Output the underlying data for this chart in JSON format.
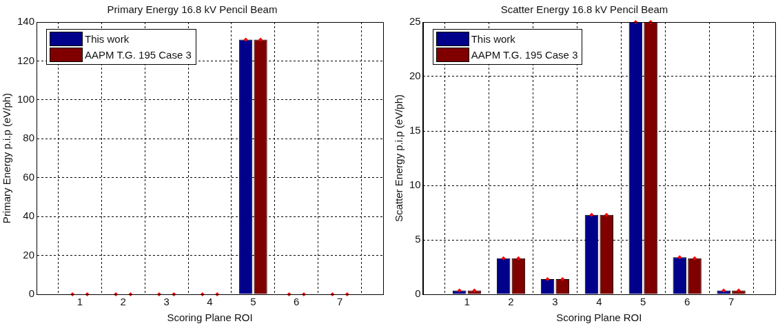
{
  "chart_data": [
    {
      "type": "bar",
      "title": "Primary Energy 16.8 kV Pencil Beam",
      "xlabel": "Scoring Plane ROI",
      "ylabel": "Primary Energy p.i.p (eV/ph)",
      "x": [
        1,
        2,
        3,
        4,
        5,
        6,
        7
      ],
      "xlim": [
        0,
        8
      ],
      "xticks": [
        1,
        2,
        3,
        4,
        5,
        6,
        7
      ],
      "ylim": [
        0,
        140
      ],
      "yticks": [
        0,
        20,
        40,
        60,
        80,
        100,
        120,
        140
      ],
      "grid": true,
      "legend": "top left",
      "series": [
        {
          "name": "This work",
          "color": "#00008b",
          "values": [
            0,
            0,
            0,
            0,
            131,
            0,
            0
          ]
        },
        {
          "name": "AAPM T.G. 195 Case 3",
          "color": "#800000",
          "values": [
            0,
            0,
            0,
            0,
            131,
            0,
            0
          ]
        },
        {
          "type": "scatter",
          "marker": "diamond",
          "color": "#ff0000",
          "x": [
            0.83,
            1.83,
            2.83,
            3.83,
            4.83,
            5.83,
            6.83
          ],
          "values": [
            0,
            0,
            0,
            0,
            131,
            0,
            0
          ]
        },
        {
          "type": "scatter",
          "marker": "diamond",
          "color": "#ff0000",
          "x": [
            1.17,
            2.17,
            3.17,
            4.17,
            5.17,
            6.17,
            7.17
          ],
          "values": [
            0,
            0,
            0,
            0,
            131,
            0,
            0
          ]
        }
      ]
    },
    {
      "type": "bar",
      "title": "Scatter Energy 16.8 kV Pencil Beam",
      "xlabel": "Scoring Plane ROI",
      "ylabel": "Scatter Energy p.i.p (eV/ph)",
      "x": [
        1,
        2,
        3,
        4,
        5,
        6,
        7
      ],
      "xlim": [
        0,
        8
      ],
      "xticks": [
        1,
        2,
        3,
        4,
        5,
        6,
        7
      ],
      "ylim": [
        0,
        25
      ],
      "yticks": [
        0,
        5,
        10,
        15,
        20,
        25
      ],
      "grid": true,
      "legend": "top left",
      "series": [
        {
          "name": "This work",
          "color": "#00008b",
          "values": [
            0.35,
            3.3,
            1.4,
            7.3,
            25,
            3.4,
            0.35
          ]
        },
        {
          "name": "AAPM T.G. 195 Case 3",
          "color": "#800000",
          "values": [
            0.35,
            3.3,
            1.4,
            7.3,
            25,
            3.3,
            0.35
          ]
        },
        {
          "type": "scatter",
          "marker": "diamond",
          "color": "#ff0000",
          "x": [
            0.83,
            1.83,
            2.83,
            3.83,
            4.83,
            5.83,
            6.83
          ],
          "values": [
            0.35,
            3.3,
            1.4,
            7.3,
            25,
            3.4,
            0.35
          ]
        },
        {
          "type": "scatter",
          "marker": "diamond",
          "color": "#ff0000",
          "x": [
            1.17,
            2.17,
            3.17,
            4.17,
            5.17,
            6.17,
            7.17
          ],
          "values": [
            0.35,
            3.3,
            1.4,
            7.3,
            25,
            3.3,
            0.35
          ]
        }
      ]
    }
  ]
}
